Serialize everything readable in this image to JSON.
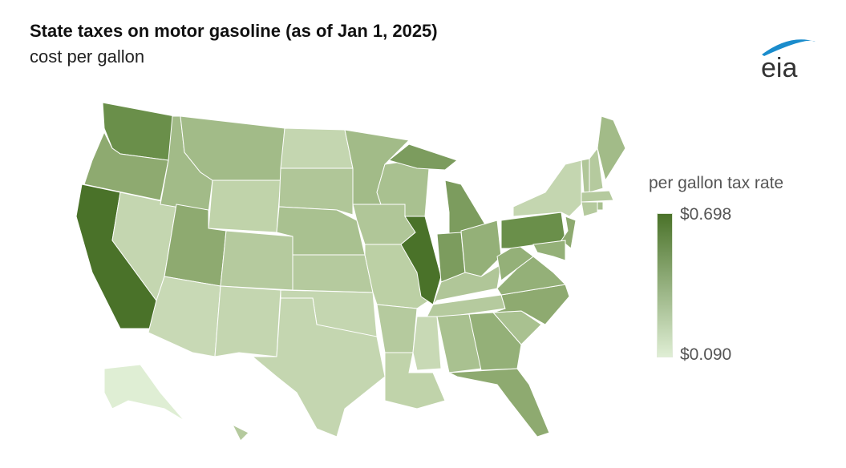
{
  "title": "State taxes on motor gasoline (as of Jan 1, 2025)",
  "subtitle": "cost per gallon",
  "logo_text": "eia",
  "legend": {
    "title": "per gallon tax rate",
    "max_label": "$0.698",
    "min_label": "$0.090",
    "max_color": "#4a7229",
    "min_color": "#dfeed4"
  },
  "states": [
    {
      "id": "WA",
      "color": "#6a8f4a"
    },
    {
      "id": "OR",
      "color": "#8eaa70"
    },
    {
      "id": "CA",
      "color": "#4a7229"
    },
    {
      "id": "NV",
      "color": "#c4d6b0"
    },
    {
      "id": "ID",
      "color": "#a2bb88"
    },
    {
      "id": "MT",
      "color": "#a2bb88"
    },
    {
      "id": "WY",
      "color": "#c0d3aa"
    },
    {
      "id": "UT",
      "color": "#8eaa70"
    },
    {
      "id": "AZ",
      "color": "#c8d9b5"
    },
    {
      "id": "CO",
      "color": "#b5ca9e"
    },
    {
      "id": "NM",
      "color": "#c4d6b0"
    },
    {
      "id": "ND",
      "color": "#c4d6b0"
    },
    {
      "id": "SD",
      "color": "#b0c698"
    },
    {
      "id": "NE",
      "color": "#a9c190"
    },
    {
      "id": "KS",
      "color": "#b5ca9e"
    },
    {
      "id": "OK",
      "color": "#c4d6b0"
    },
    {
      "id": "TX",
      "color": "#c4d6b0"
    },
    {
      "id": "MN",
      "color": "#a2bb88"
    },
    {
      "id": "IA",
      "color": "#b0c698"
    },
    {
      "id": "MO",
      "color": "#bcd0a5"
    },
    {
      "id": "AR",
      "color": "#b5ca9e"
    },
    {
      "id": "LA",
      "color": "#c0d3aa"
    },
    {
      "id": "WI",
      "color": "#a9c190"
    },
    {
      "id": "IL",
      "color": "#4a7229"
    },
    {
      "id": "MI",
      "color": "#7c9c5e"
    },
    {
      "id": "MI-UP",
      "color": "#7c9c5e"
    },
    {
      "id": "IN",
      "color": "#7c9c5e"
    },
    {
      "id": "OH",
      "color": "#94b078"
    },
    {
      "id": "KY",
      "color": "#b0c698"
    },
    {
      "id": "TN",
      "color": "#b5ca9e"
    },
    {
      "id": "MS",
      "color": "#c8d9b5"
    },
    {
      "id": "AL",
      "color": "#a9c190"
    },
    {
      "id": "GA",
      "color": "#94b078"
    },
    {
      "id": "FL",
      "color": "#8eaa70"
    },
    {
      "id": "SC",
      "color": "#a9c190"
    },
    {
      "id": "NC",
      "color": "#8eaa70"
    },
    {
      "id": "VA",
      "color": "#94b078"
    },
    {
      "id": "WV",
      "color": "#94b078"
    },
    {
      "id": "PA",
      "color": "#6a8f4a"
    },
    {
      "id": "NY",
      "color": "#c4d6b0"
    },
    {
      "id": "VT",
      "color": "#b0c698"
    },
    {
      "id": "NH",
      "color": "#b5ca9e"
    },
    {
      "id": "ME",
      "color": "#a2bb88"
    },
    {
      "id": "MA",
      "color": "#b5ca9e"
    },
    {
      "id": "CT",
      "color": "#b5ca9e"
    },
    {
      "id": "RI",
      "color": "#a9c190"
    },
    {
      "id": "NJ",
      "color": "#8eaa70"
    },
    {
      "id": "MD",
      "color": "#94b078"
    },
    {
      "id": "AK",
      "color": "#dfeed4"
    },
    {
      "id": "HI",
      "color": "#b5ca9e"
    }
  ]
}
